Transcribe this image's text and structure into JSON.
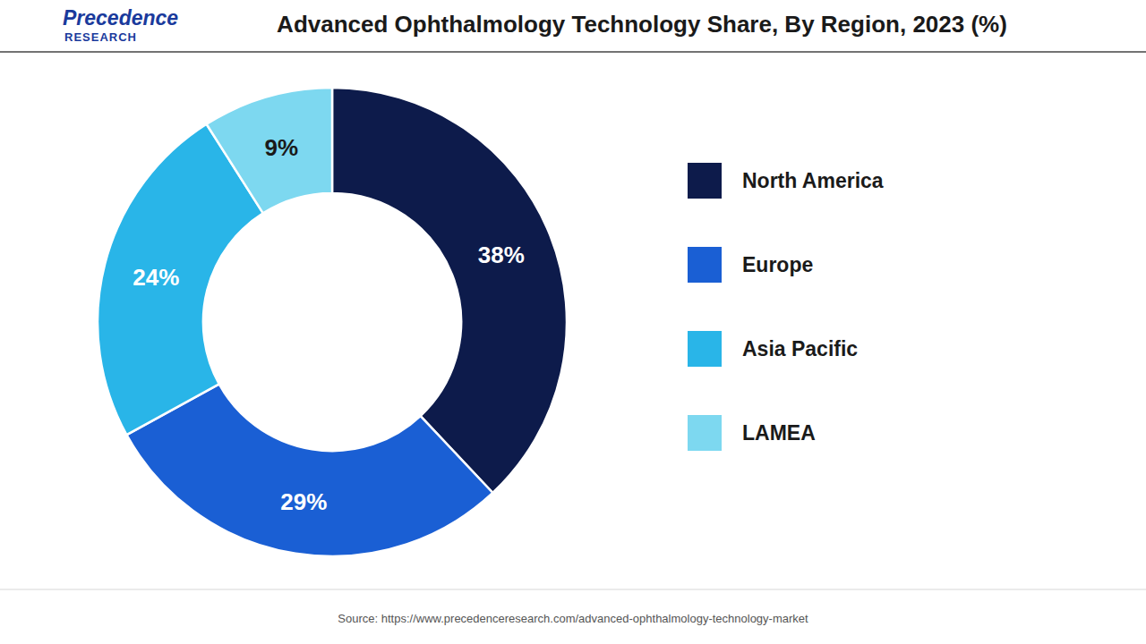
{
  "chart_data": {
    "type": "pie",
    "title": "Advanced Ophthalmology Technology Share, By Region, 2023 (%)",
    "categories": [
      "North America",
      "Europe",
      "Asia Pacific",
      "LAMEA"
    ],
    "values": [
      38,
      29,
      24,
      9
    ],
    "value_labels": [
      "38%",
      "29%",
      "24%",
      "9%"
    ],
    "colors": [
      "#0d1b4b",
      "#1a5fd4",
      "#29b5e8",
      "#7dd8f0"
    ],
    "data_labels": true,
    "legend": "right",
    "annotations": [
      "Source: https://www.precedenceresearch.com/advanced-ophthalmology-technology-market",
      "Precedence",
      "RESEARCH"
    ]
  }
}
